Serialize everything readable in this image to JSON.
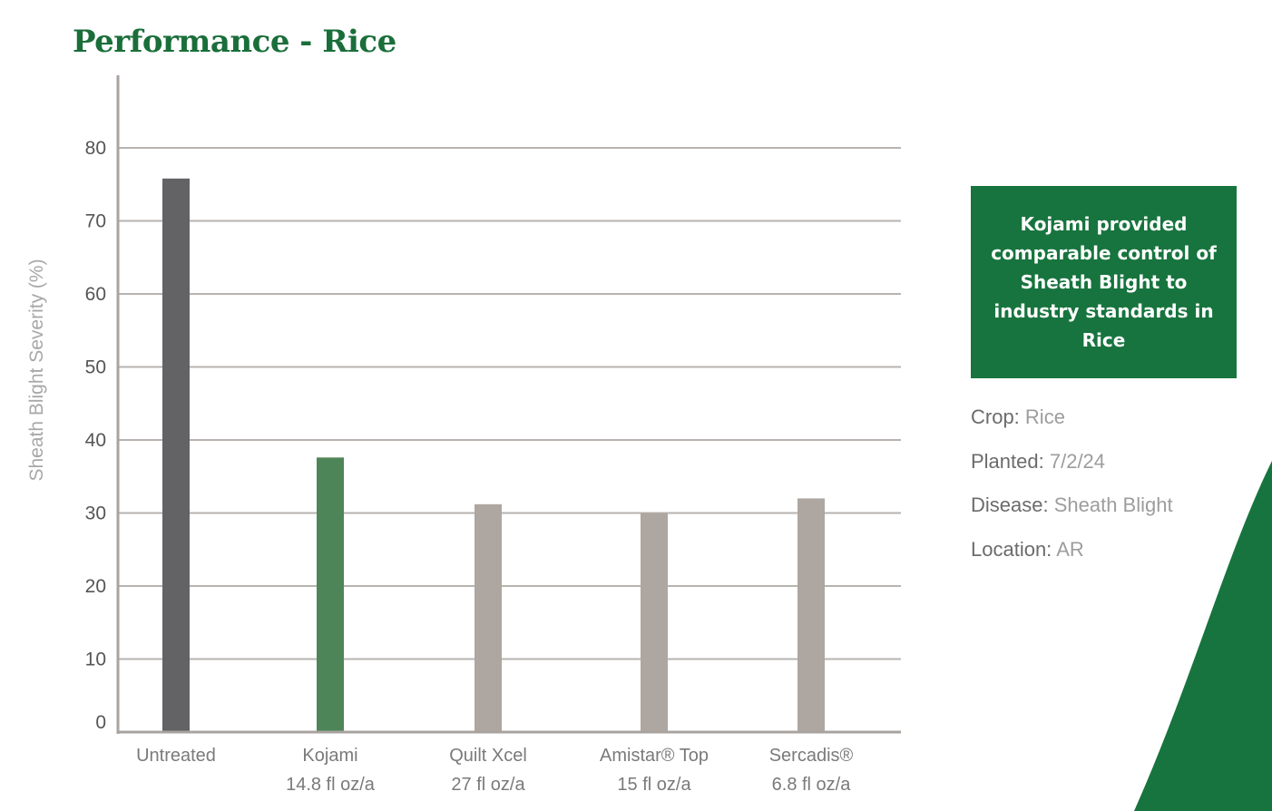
{
  "title": "Performance - Rice",
  "callout": {
    "text": "Kojami provided comparable control of Sheath Blight to industry standards in Rice"
  },
  "info": [
    {
      "key": "Crop:",
      "value": "Rice"
    },
    {
      "key": "Planted:",
      "value": "7/2/24"
    },
    {
      "key": "Disease:",
      "value": "Sheath Blight"
    },
    {
      "key": "Location:",
      "value": "AR"
    }
  ],
  "colors": {
    "brand_green": "#17743e",
    "untreated_bar": "#636366",
    "kojami_bar": "#4e8558",
    "other_bar": "#aea6a1",
    "grid": "#b8b3af",
    "axis": "#a9a39f"
  },
  "chart_data": {
    "type": "bar",
    "title": "Performance - Rice",
    "ylabel": "Sheath Blight Severity (%)",
    "xlabel": "",
    "ylim": [
      0,
      90
    ],
    "yticks": [
      0,
      10,
      20,
      30,
      40,
      50,
      60,
      70,
      80
    ],
    "grid": true,
    "categories": [
      [
        "Untreated"
      ],
      [
        "Kojami",
        "14.8 fl oz/a"
      ],
      [
        "Quilt Xcel",
        "27 fl oz/a"
      ],
      [
        "Amistar® Top",
        "15 fl oz/a"
      ],
      [
        "Sercadis®",
        "6.8 fl oz/a"
      ]
    ],
    "values": [
      75.8,
      37.6,
      31.2,
      30.0,
      32.0
    ],
    "bar_colors": [
      "#636366",
      "#4e8558",
      "#aea6a1",
      "#aea6a1",
      "#aea6a1"
    ]
  }
}
